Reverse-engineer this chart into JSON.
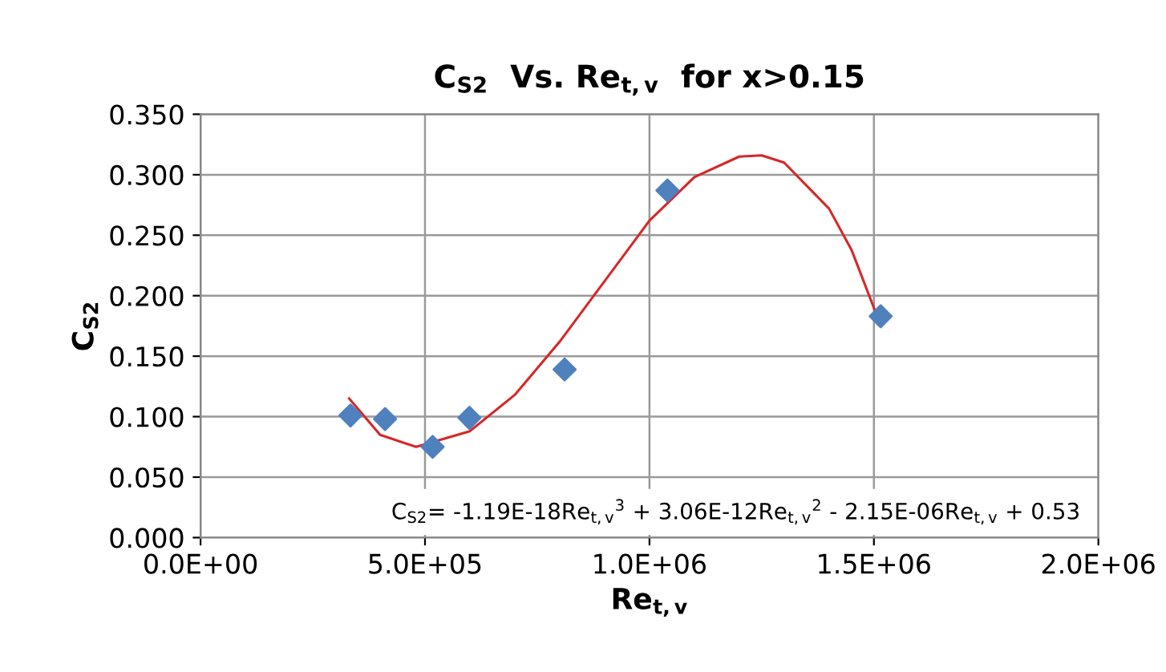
{
  "chart_data": {
    "type": "scatter",
    "title": "C$_{S2}$  Vs. Re$_{t,v}$  for x>0.15",
    "xlabel": "Re$_{t,v}$",
    "ylabel": "C$_{S2}$",
    "xlim": [
      0,
      2000000
    ],
    "ylim": [
      0,
      0.35
    ],
    "xticks": [
      {
        "value": 0,
        "label": "0.0E+00"
      },
      {
        "value": 500000,
        "label": "5.0E+05"
      },
      {
        "value": 1000000,
        "label": "1.0E+06"
      },
      {
        "value": 1500000,
        "label": "1.5E+06"
      },
      {
        "value": 2000000,
        "label": "2.0E+06"
      }
    ],
    "yticks": [
      {
        "value": 0,
        "label": "0.000"
      },
      {
        "value": 0.05,
        "label": "0.050"
      },
      {
        "value": 0.1,
        "label": "0.100"
      },
      {
        "value": 0.15,
        "label": "0.150"
      },
      {
        "value": 0.2,
        "label": "0.200"
      },
      {
        "value": 0.25,
        "label": "0.250"
      },
      {
        "value": 0.3,
        "label": "0.300"
      },
      {
        "value": 0.35,
        "label": "0.350"
      }
    ],
    "grid": true,
    "legend": false,
    "series": [
      {
        "color": "#4f81bd",
        "marker": "diamond",
        "x": [
          334000,
          411000,
          517000,
          599000,
          811000,
          1040000,
          1515000
        ],
        "values": [
          0.101,
          0.098,
          0.075,
          0.099,
          0.139,
          0.287,
          0.183
        ]
      },
      {
        "type": "line",
        "color": "#d62728",
        "marker": "none",
        "line_style": "solid",
        "x": [
          331000,
          400000,
          480000,
          600000,
          700000,
          800000,
          900000,
          1000000,
          1100000,
          1200000,
          1250000,
          1300000,
          1400000,
          1450000,
          1503000
        ],
        "values": [
          0.115,
          0.085,
          0.075,
          0.088,
          0.118,
          0.162,
          0.212,
          0.262,
          0.298,
          0.315,
          0.316,
          0.31,
          0.272,
          0.238,
          0.187
        ]
      }
    ],
    "annotations": [
      "C$_{S2}$= -1.19E-18Re$_{t,v}$$^{3}$ + 3.06E-12Re$_{t,v}$$^{2}$ - 2.15E-06Re$_{t,v}$ + 0.53"
    ]
  }
}
